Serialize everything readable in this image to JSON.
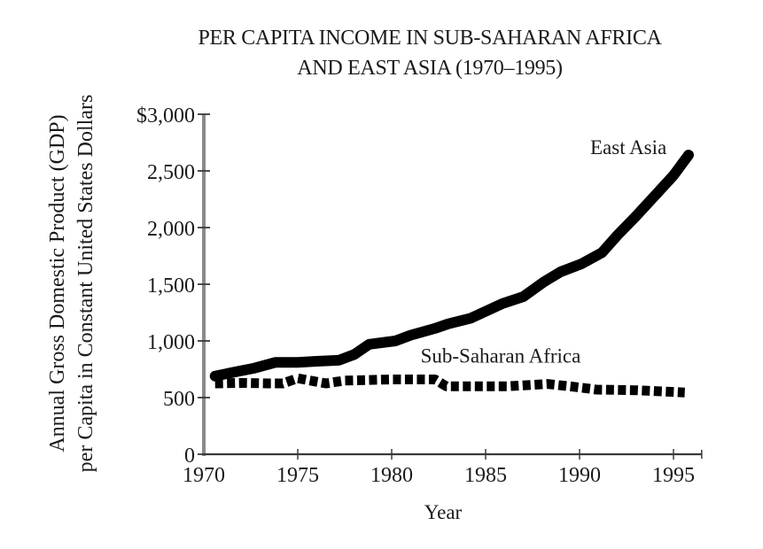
{
  "chart_data": {
    "type": "line",
    "title": "PER CAPITA INCOME IN SUB-SAHARAN AFRICA AND EAST ASIA (1970–1995)",
    "title_lines": [
      "PER CAPITA INCOME IN SUB-SAHARAN AFRICA",
      "AND EAST ASIA (1970–1995)"
    ],
    "xlabel": "Year",
    "ylabel": "Annual Gross Domestic Product (GDP) per Capita in Constant United States Dollars",
    "ylabel_lines": [
      "Annual Gross Domestic Product (GDP)",
      "per Capita in Constant United States Dollars"
    ],
    "xlim": [
      1970,
      1996.5
    ],
    "ylim": [
      0,
      3000
    ],
    "x_ticks": [
      1970,
      1975,
      1980,
      1985,
      1990,
      1995
    ],
    "x_tick_labels": [
      "1970",
      "1975",
      "1980",
      "1985",
      "1990",
      "1995"
    ],
    "y_ticks": [
      0,
      500,
      1000,
      1500,
      2000,
      2500,
      3000
    ],
    "y_tick_labels": [
      "0",
      "500",
      "1,000",
      "1,500",
      "2,000",
      "2,500",
      "$3,000"
    ],
    "grid": false,
    "legend": "inline labels",
    "series": [
      {
        "name": "East Asia",
        "style": "solid-thick",
        "color": "#000000",
        "x": [
          1970.6,
          1971.5,
          1972.7,
          1973.8,
          1975,
          1976,
          1977.2,
          1978,
          1978.8,
          1980.2,
          1981,
          1982.3,
          1983,
          1984.2,
          1985.9,
          1987,
          1988.1,
          1989,
          1990.1,
          1991.2,
          1992,
          1993,
          1994,
          1995,
          1995.8
        ],
        "values": [
          690,
          720,
          760,
          810,
          810,
          820,
          830,
          880,
          970,
          1000,
          1050,
          1110,
          1150,
          1200,
          1330,
          1390,
          1520,
          1610,
          1680,
          1780,
          1930,
          2100,
          2280,
          2460,
          2640
        ]
      },
      {
        "name": "Sub-Saharan Africa",
        "style": "dotted-thick",
        "color": "#000000",
        "x": [
          1970.6,
          1972,
          1973.4,
          1974.2,
          1975,
          1976.5,
          1977.5,
          1980,
          1982.3,
          1982.9,
          1985,
          1986.2,
          1988.3,
          1989.7,
          1990.9,
          1993,
          1995.6
        ],
        "values": [
          625,
          630,
          625,
          625,
          670,
          625,
          650,
          660,
          660,
          600,
          600,
          600,
          620,
          595,
          570,
          565,
          545
        ]
      }
    ],
    "annotations": [
      {
        "text": "East Asia",
        "x": 1992.6,
        "y": 2650
      },
      {
        "text": "Sub-Saharan Africa",
        "x": 1985.8,
        "y": 810
      }
    ]
  }
}
